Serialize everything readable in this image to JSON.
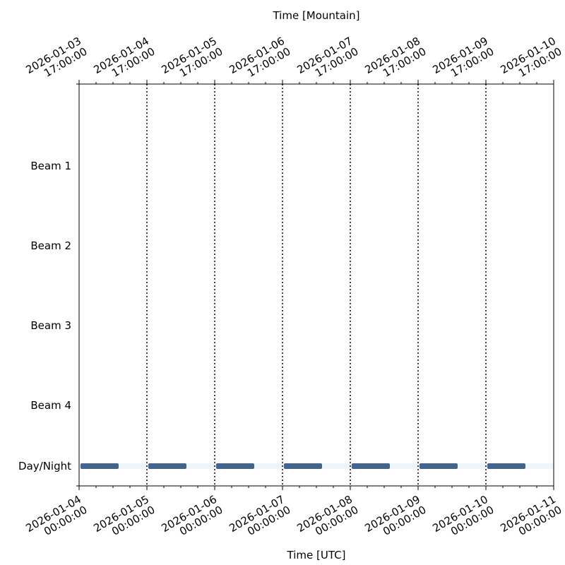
{
  "chart_data": {
    "type": "timeline",
    "xlabel": "Time [UTC]",
    "x2label": "Time [Mountain]",
    "xlim": [
      "2026-01-04T00:00",
      "2026-01-11T00:00"
    ],
    "xticks": [
      {
        "value": "2026-01-04T00:00",
        "label": [
          "2026-01-04",
          "00:00:00"
        ]
      },
      {
        "value": "2026-01-05T00:00",
        "label": [
          "2026-01-05",
          "00:00:00"
        ]
      },
      {
        "value": "2026-01-06T00:00",
        "label": [
          "2026-01-06",
          "00:00:00"
        ]
      },
      {
        "value": "2026-01-07T00:00",
        "label": [
          "2026-01-07",
          "00:00:00"
        ]
      },
      {
        "value": "2026-01-08T00:00",
        "label": [
          "2026-01-08",
          "00:00:00"
        ]
      },
      {
        "value": "2026-01-09T00:00",
        "label": [
          "2026-01-09",
          "00:00:00"
        ]
      },
      {
        "value": "2026-01-10T00:00",
        "label": [
          "2026-01-10",
          "00:00:00"
        ]
      },
      {
        "value": "2026-01-11T00:00",
        "label": [
          "2026-01-11",
          "00:00:00"
        ]
      }
    ],
    "x2lim": [
      "2026-01-03T17:00",
      "2026-01-10T17:00"
    ],
    "x2ticks": [
      {
        "value": "2026-01-03T17:00",
        "label": [
          "2026-01-03",
          "17:00:00"
        ]
      },
      {
        "value": "2026-01-04T17:00",
        "label": [
          "2026-01-04",
          "17:00:00"
        ]
      },
      {
        "value": "2026-01-05T17:00",
        "label": [
          "2026-01-05",
          "17:00:00"
        ]
      },
      {
        "value": "2026-01-06T17:00",
        "label": [
          "2026-01-06",
          "17:00:00"
        ]
      },
      {
        "value": "2026-01-07T17:00",
        "label": [
          "2026-01-07",
          "17:00:00"
        ]
      },
      {
        "value": "2026-01-08T17:00",
        "label": [
          "2026-01-08",
          "17:00:00"
        ]
      },
      {
        "value": "2026-01-09T17:00",
        "label": [
          "2026-01-09",
          "17:00:00"
        ]
      },
      {
        "value": "2026-01-10T17:00",
        "label": [
          "2026-01-10",
          "17:00:00"
        ]
      }
    ],
    "minor_tick_hours": 6,
    "categories": [
      "Beam 1",
      "Beam 2",
      "Beam 3",
      "Beam 4",
      "Day/Night"
    ],
    "grid": true,
    "series": [
      {
        "name": "Day/Night",
        "color": "#45648a",
        "background_color": "#eef5fb",
        "starts": [
          "2026-01-04T00:30",
          "2026-01-05T00:30",
          "2026-01-06T00:30",
          "2026-01-07T00:30",
          "2026-01-08T00:30",
          "2026-01-09T00:30",
          "2026-01-10T00:30"
        ],
        "ends": [
          "2026-01-04T14:00",
          "2026-01-05T14:00",
          "2026-01-06T14:00",
          "2026-01-07T14:00",
          "2026-01-08T14:00",
          "2026-01-09T14:00",
          "2026-01-10T14:00"
        ]
      }
    ]
  }
}
